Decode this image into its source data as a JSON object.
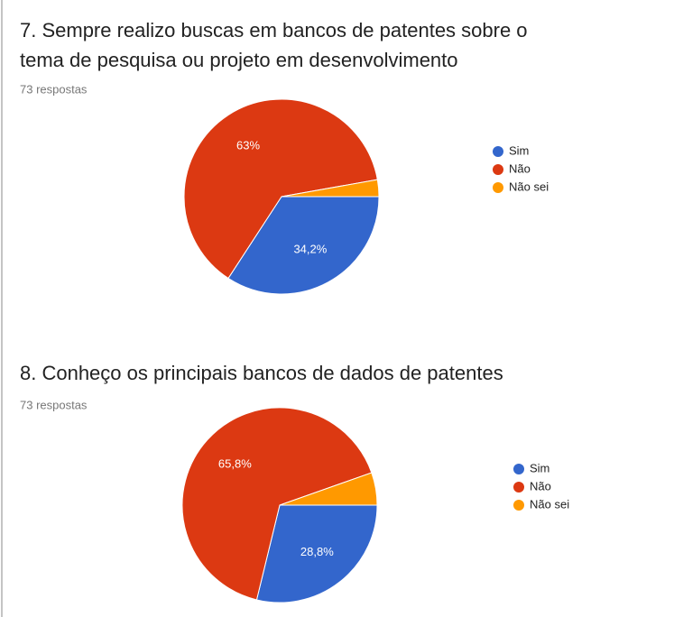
{
  "chart_data": [
    {
      "type": "pie",
      "title": "7. Sempre realizo buscas em bancos de patentes sobre o tema de pesquisa ou projeto em desenvolvimento",
      "subtitle": "73 respostas",
      "categories": [
        "Sim",
        "Não",
        "Não sei"
      ],
      "values": [
        34.2,
        63,
        2.8
      ],
      "value_labels": [
        "34,2%",
        "63%",
        null
      ],
      "colors": [
        "#3366cc",
        "#dc3912",
        "#ff9900"
      ],
      "legend": "right"
    },
    {
      "type": "pie",
      "title": "8. Conheço os principais bancos de dados de patentes",
      "subtitle": "73 respostas",
      "categories": [
        "Sim",
        "Não",
        "Não sei"
      ],
      "values": [
        28.8,
        65.8,
        5.4
      ],
      "value_labels": [
        "28,8%",
        "65,8%",
        null
      ],
      "colors": [
        "#3366cc",
        "#dc3912",
        "#ff9900"
      ],
      "legend": "right"
    }
  ]
}
